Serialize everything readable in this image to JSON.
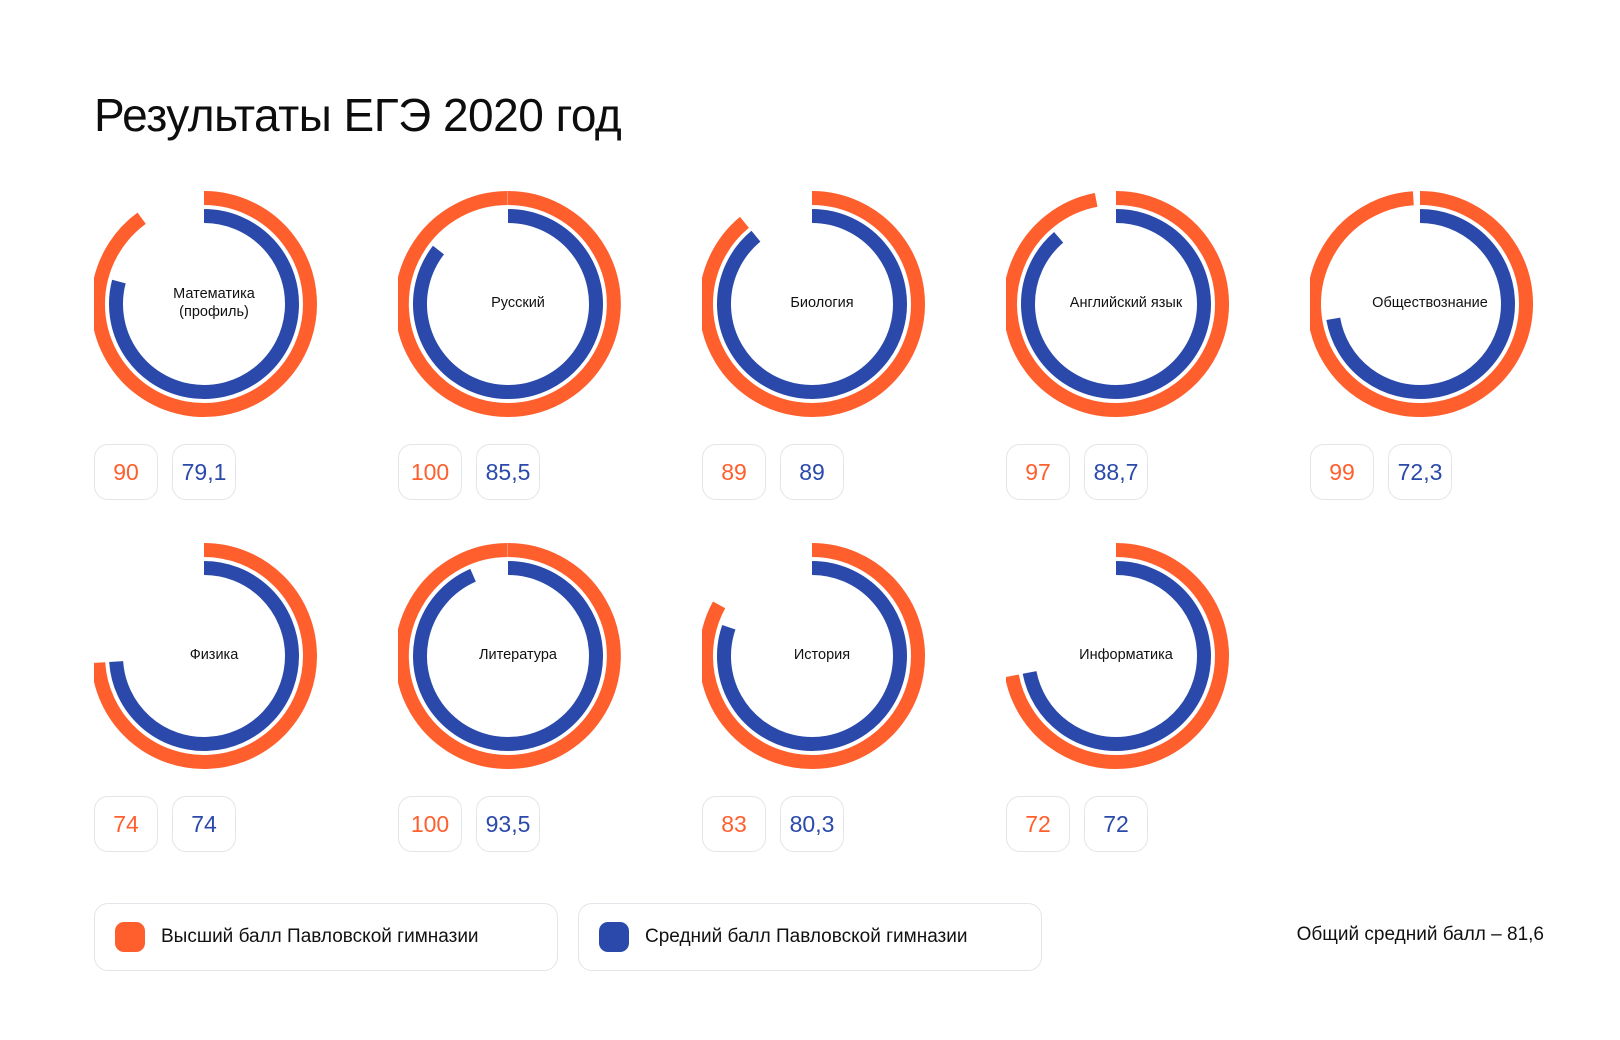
{
  "title": "Результаты ЕГЭ 2020 год",
  "colors": {
    "max": "#ff5f2d",
    "avg": "#2a49aa",
    "track_gap": "#ffffff"
  },
  "legend": {
    "max_label": "Высший балл Павловской гимназии",
    "avg_label": "Средний балл Павловской гимназии"
  },
  "overall": "Общий средний балл – 81,6",
  "chart_data": {
    "type": "radial-bar",
    "scale_max": 100,
    "series": [
      {
        "name": "Высший балл Павловской гимназии",
        "color": "#ff5f2d"
      },
      {
        "name": "Средний балл Павловской гимназии",
        "color": "#2a49aa"
      }
    ],
    "subjects": [
      {
        "name": "Математика\n(профиль)",
        "max": 90,
        "max_label": "90",
        "avg": 79.1,
        "avg_label": "79,1"
      },
      {
        "name": "Русский",
        "max": 100,
        "max_label": "100",
        "avg": 85.5,
        "avg_label": "85,5"
      },
      {
        "name": "Биология",
        "max": 89,
        "max_label": "89",
        "avg": 89,
        "avg_label": "89"
      },
      {
        "name": "Английский язык",
        "max": 97,
        "max_label": "97",
        "avg": 88.7,
        "avg_label": "88,7"
      },
      {
        "name": "Обществознание",
        "max": 99,
        "max_label": "99",
        "avg": 72.3,
        "avg_label": "72,3"
      },
      {
        "name": "Физика",
        "max": 74,
        "max_label": "74",
        "avg": 74,
        "avg_label": "74"
      },
      {
        "name": "Литература",
        "max": 100,
        "max_label": "100",
        "avg": 93.5,
        "avg_label": "93,5"
      },
      {
        "name": "История",
        "max": 83,
        "max_label": "83",
        "avg": 80.3,
        "avg_label": "80,3"
      },
      {
        "name": "Информатика",
        "max": 72,
        "max_label": "72",
        "avg": 72,
        "avg_label": "72"
      }
    ]
  }
}
